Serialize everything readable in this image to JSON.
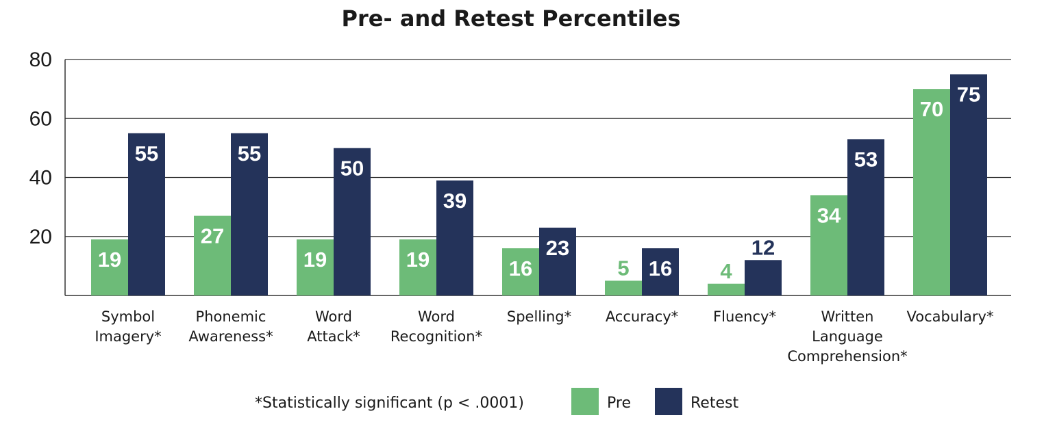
{
  "chart_data": {
    "type": "bar",
    "title": "Pre- and Retest Percentiles",
    "categories": [
      [
        "Symbol",
        "Imagery*"
      ],
      [
        "Phonemic",
        "Awareness*"
      ],
      [
        "Word",
        "Attack*"
      ],
      [
        "Word",
        "Recognition*"
      ],
      [
        "Spelling*"
      ],
      [
        "Accuracy*"
      ],
      [
        "Fluency*"
      ],
      [
        "Written",
        "Language",
        "Comprehension*"
      ],
      [
        "Vocabulary*"
      ]
    ],
    "series": [
      {
        "name": "Pre",
        "color": "#6dbb78",
        "values": [
          19,
          27,
          19,
          19,
          16,
          5,
          4,
          34,
          70
        ]
      },
      {
        "name": "Retest",
        "color": "#24335a",
        "values": [
          55,
          55,
          50,
          39,
          23,
          16,
          12,
          53,
          75
        ]
      }
    ],
    "yticks": [
      20,
      40,
      60,
      80
    ],
    "ylim": [
      0,
      80
    ],
    "grid": true,
    "legend_position": "bottom",
    "footnote": "*Statistically significant (p < .0001)"
  }
}
